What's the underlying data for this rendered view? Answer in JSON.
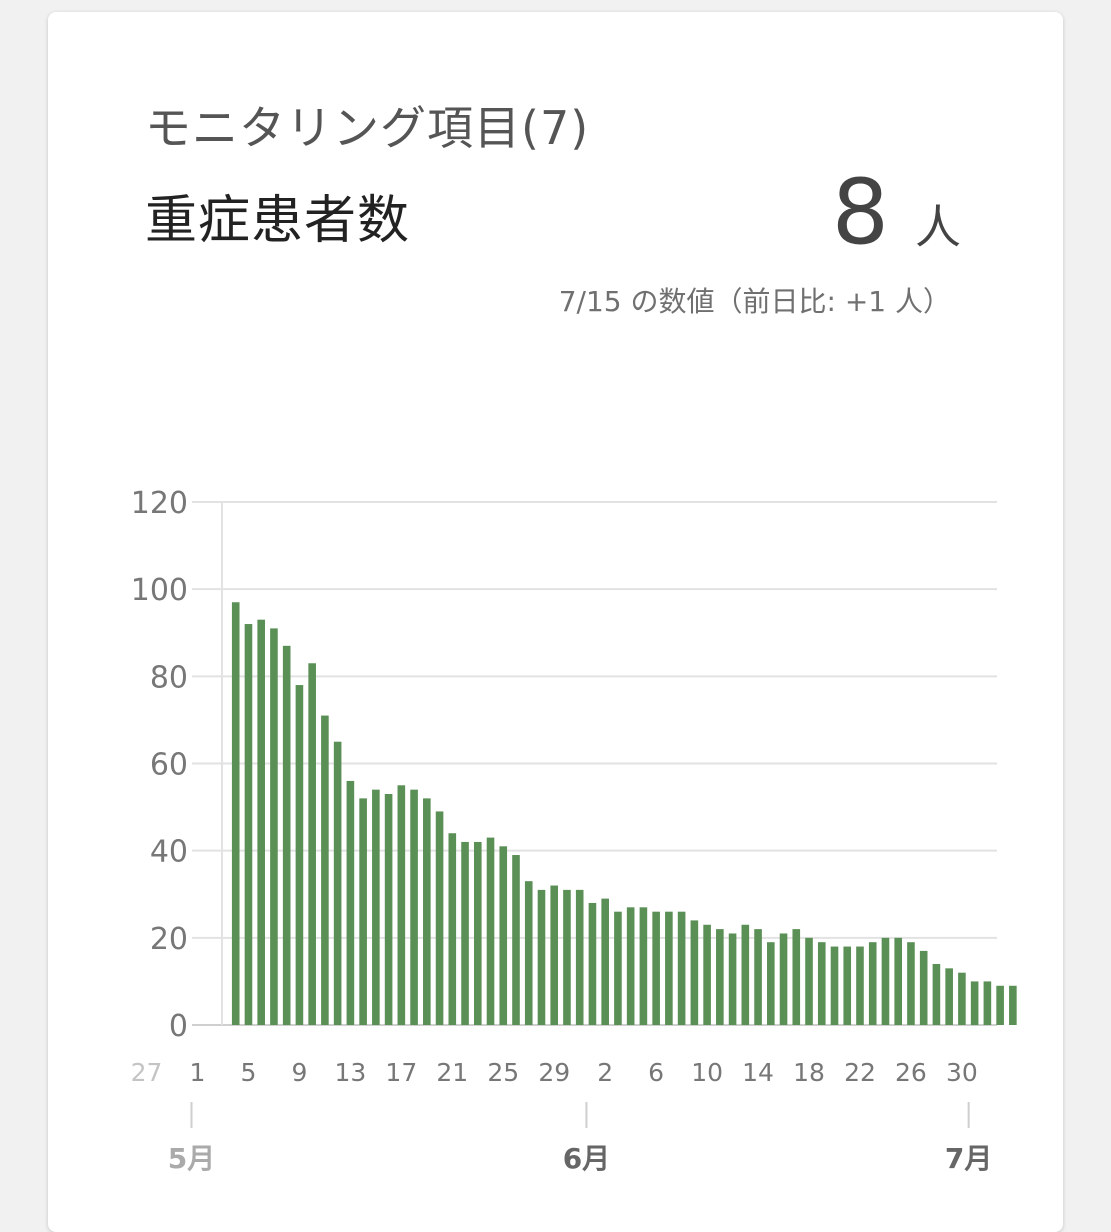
{
  "header": {
    "subtitle": "モニタリング項目(7)",
    "title": "重症患者数",
    "value": "8",
    "unit": "人",
    "note": "7/15 の数値（前日比: +1 人）"
  },
  "colors": {
    "bar": "#5a8f55",
    "grid": "#e2e2e2",
    "axis": "#cfcfcf",
    "tick_text": "#777777",
    "faded_tick_text": "#c4c4c4"
  },
  "chart_data": {
    "type": "bar",
    "ylim": [
      0,
      120
    ],
    "y_ticks": [
      "0",
      "20",
      "40",
      "60",
      "80",
      "100",
      "120"
    ],
    "grid": true,
    "x_day_ticks": [
      {
        "label": "27",
        "day": -4,
        "faded": true
      },
      {
        "label": "1",
        "day": 0
      },
      {
        "label": "5",
        "day": 4
      },
      {
        "label": "9",
        "day": 8
      },
      {
        "label": "13",
        "day": 12
      },
      {
        "label": "17",
        "day": 16
      },
      {
        "label": "21",
        "day": 20
      },
      {
        "label": "25",
        "day": 24
      },
      {
        "label": "29",
        "day": 28
      },
      {
        "label": "2",
        "day": 32
      },
      {
        "label": "6",
        "day": 36
      },
      {
        "label": "10",
        "day": 40
      },
      {
        "label": "14",
        "day": 44
      },
      {
        "label": "18",
        "day": 48
      },
      {
        "label": "22",
        "day": 52
      },
      {
        "label": "26",
        "day": 56
      },
      {
        "label": "30",
        "day": 60
      }
    ],
    "x_month_ticks": [
      {
        "label": "5月",
        "day": 0,
        "faded": true
      },
      {
        "label": "6月",
        "day": 31
      },
      {
        "label": "7月",
        "day": 61
      }
    ],
    "start_day": 3,
    "values": [
      97,
      92,
      93,
      91,
      87,
      78,
      83,
      71,
      65,
      56,
      52,
      54,
      53,
      55,
      54,
      52,
      49,
      44,
      42,
      42,
      43,
      41,
      39,
      33,
      31,
      32,
      31,
      31,
      28,
      29,
      26,
      27,
      27,
      26,
      26,
      26,
      24,
      23,
      22,
      21,
      23,
      22,
      19,
      21,
      22,
      20,
      19,
      18,
      18,
      18,
      19,
      20,
      20,
      19,
      17,
      14,
      13,
      12,
      10,
      10,
      9,
      9
    ]
  }
}
